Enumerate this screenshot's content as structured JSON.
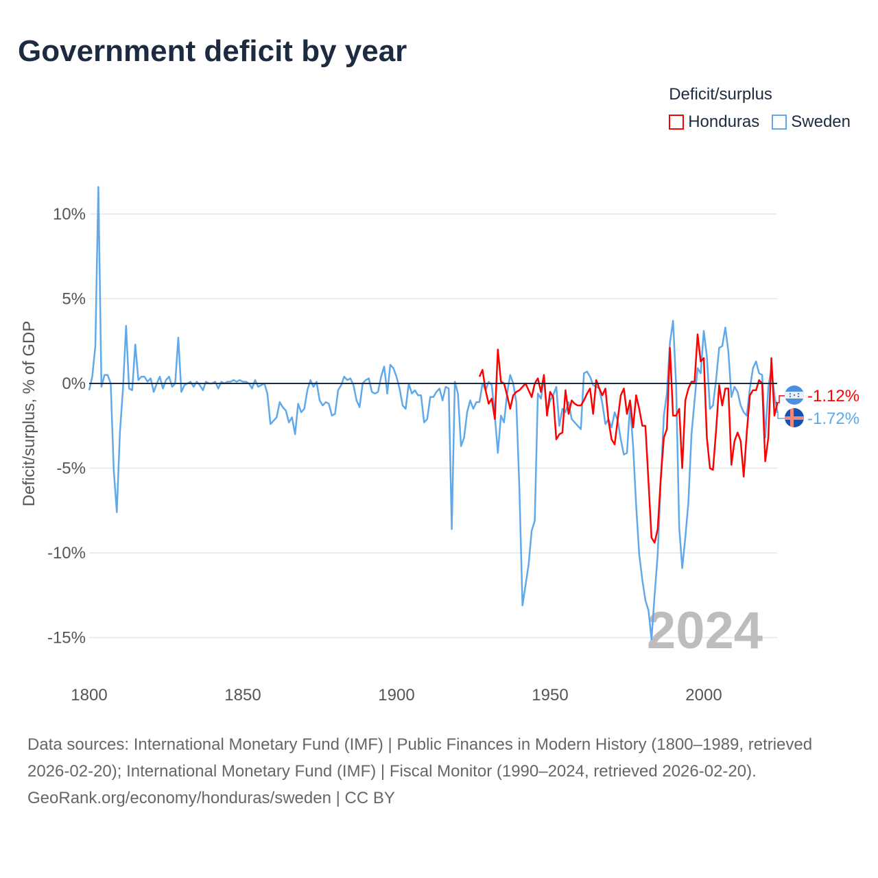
{
  "title": "Government deficit by year",
  "legend": {
    "title": "Deficit/surplus",
    "items": [
      {
        "label": "Honduras",
        "color": "#ff0000"
      },
      {
        "label": "Sweden",
        "color": "#5fa8ea"
      }
    ]
  },
  "chart_data": {
    "type": "line",
    "title": "Government deficit by year",
    "xlabel": "",
    "ylabel": "Deficit/surplus, % of GDP",
    "xlim": [
      1800,
      2024
    ],
    "ylim": [
      -16,
      12
    ],
    "x_ticks": [
      {
        "value": 1800,
        "label": "1800"
      },
      {
        "value": 1850,
        "label": "1850"
      },
      {
        "value": 1900,
        "label": "1900"
      },
      {
        "value": 1950,
        "label": "1950"
      },
      {
        "value": 2000,
        "label": "2000"
      }
    ],
    "y_ticks": [
      {
        "value": 10,
        "label": "10%"
      },
      {
        "value": 5,
        "label": "5%"
      },
      {
        "value": 0,
        "label": "0%"
      },
      {
        "value": -5,
        "label": "-5%"
      },
      {
        "value": -10,
        "label": "-10%"
      },
      {
        "value": -15,
        "label": "-15%"
      }
    ],
    "grid": true,
    "legend_position": "top-right",
    "year_annotation": "2024",
    "series": [
      {
        "name": "Sweden",
        "color": "#5fa8ea",
        "start_year": 1800,
        "end_label": "-1.72%",
        "values": [
          -0.4,
          0.4,
          2.2,
          11.6,
          -0.2,
          0.5,
          0.5,
          0,
          -5.1,
          -7.6,
          -2.9,
          -0.3,
          3.4,
          -0.3,
          -0.4,
          2.3,
          0.2,
          0.4,
          0.4,
          0.1,
          0.3,
          -0.5,
          0,
          0.4,
          -0.3,
          0.2,
          0.4,
          -0.2,
          0,
          2.7,
          -0.5,
          -0.1,
          0,
          0.1,
          -0.2,
          0.1,
          -0.1,
          -0.4,
          0.1,
          0,
          0,
          0.1,
          -0.3,
          0.1,
          0,
          0.1,
          0.1,
          0.2,
          0.1,
          0.2,
          0.1,
          0.1,
          0,
          -0.3,
          0.2,
          -0.2,
          -0.1,
          0,
          -0.6,
          -2.4,
          -2.2,
          -2.0,
          -1.1,
          -1.4,
          -1.6,
          -2.3,
          -2.0,
          -3.0,
          -1.2,
          -1.7,
          -1.5,
          -0.4,
          0.2,
          -0.2,
          0.1,
          -1.0,
          -1.3,
          -1.1,
          -1.2,
          -1.9,
          -1.8,
          -0.4,
          -0.1,
          0.4,
          0.2,
          0.3,
          -0.1,
          -1.0,
          -1.4,
          0,
          0.2,
          0.3,
          -0.5,
          -0.6,
          -0.5,
          0.4,
          1.0,
          -0.6,
          1.1,
          0.9,
          0.4,
          -0.3,
          -1.3,
          -1.5,
          0,
          -0.6,
          -0.4,
          -0.7,
          -0.7,
          -2.3,
          -2.1,
          -0.8,
          -0.8,
          -0.5,
          -0.3,
          -1.0,
          -0.2,
          -0.3,
          -8.6,
          0.1,
          -0.6,
          -3.7,
          -3.2,
          -1.7,
          -1.0,
          -1.5,
          -1.1,
          -1.1,
          0,
          -0.4,
          0.1,
          -0.1,
          -1.9,
          -4.1,
          -1.9,
          -2.3,
          -0.6,
          0.5,
          0,
          -1.1,
          -6.2,
          -13.1,
          -11.9,
          -10.7,
          -8.7,
          -8.1,
          -0.6,
          -0.9,
          0.3,
          -1.7,
          -1.0,
          -0.7,
          -0.2,
          -2.5,
          -1.5,
          -1.7,
          -1.1,
          -2.1,
          -2.3,
          -2.5,
          -2.7,
          0.6,
          0.7,
          0.4,
          -0.1,
          -0.2,
          -0.3,
          -1.2,
          -2.4,
          -2.1,
          -2.6,
          -1.7,
          -2.2,
          -3.3,
          -4.2,
          -4.1,
          -1.3,
          -3.7,
          -7.2,
          -10.1,
          -11.6,
          -12.8,
          -13.4,
          -15.1,
          -12.5,
          -10.1,
          -5.8,
          -1.9,
          -0.6,
          2.4,
          3.7,
          -0.1,
          -8.5,
          -10.9,
          -9.1,
          -7.0,
          -3.0,
          -1.0,
          0.9,
          0.6,
          3.1,
          1.6,
          -1.5,
          -1.3,
          0.2,
          2.1,
          2.2,
          3.3,
          1.9,
          -0.8,
          -0.2,
          -0.5,
          -1.3,
          -1.7,
          -1.9,
          -0.3,
          0.9,
          1.3,
          0.6,
          0.5,
          -3.2,
          -0.2,
          0.9,
          -0.7,
          -1.72
        ]
      },
      {
        "name": "Honduras",
        "color": "#ff0000",
        "start_year": 1927,
        "end_label": "-1.12%",
        "values": [
          0.4,
          0.8,
          -0.4,
          -1.2,
          -0.9,
          -2.1,
          2.0,
          0.1,
          0,
          -0.7,
          -1.5,
          -0.7,
          -0.5,
          -0.4,
          -0.2,
          0,
          -0.4,
          -0.8,
          0,
          0.3,
          -0.5,
          0.5,
          -1.9,
          -0.5,
          -0.8,
          -3.3,
          -3.0,
          -2.9,
          -0.4,
          -1.8,
          -1.0,
          -1.2,
          -1.3,
          -1.3,
          -1.0,
          -0.6,
          -0.3,
          -1.8,
          0.2,
          -0.3,
          -0.7,
          -0.3,
          -2.2,
          -3.3,
          -3.6,
          -2.1,
          -0.7,
          -0.3,
          -1.8,
          -1.0,
          -2.6,
          -0.7,
          -1.5,
          -2.5,
          -2.5,
          -5.8,
          -9.1,
          -9.4,
          -8.6,
          -5.6,
          -3.2,
          -2.7,
          2.1,
          -1.9,
          -1.9,
          -1.5,
          -5.0,
          -1.0,
          -0.3,
          0.1,
          0.1,
          2.9,
          1.3,
          1.5,
          -3.2,
          -5.0,
          -5.1,
          -2.8,
          -0.1,
          -1.3,
          -0.3,
          -0.3,
          -4.8,
          -3.4,
          -2.9,
          -3.4,
          -5.5,
          -2.9,
          -0.7,
          -0.4,
          -0.4,
          0.2,
          0.0,
          -4.6,
          -3.2,
          1.5,
          -1.9,
          -1.12
        ]
      }
    ]
  },
  "footer": {
    "sources": "Data sources: International Monetary Fund (IMF) | Public Finances in Modern History (1800–1989, retrieved 2026-02-20); International Monetary Fund (IMF) | Fiscal Monitor (1990–2024, retrieved 2026-02-20).",
    "link": "GeoRank.org/economy/honduras/sweden",
    "license": "CC BY"
  }
}
